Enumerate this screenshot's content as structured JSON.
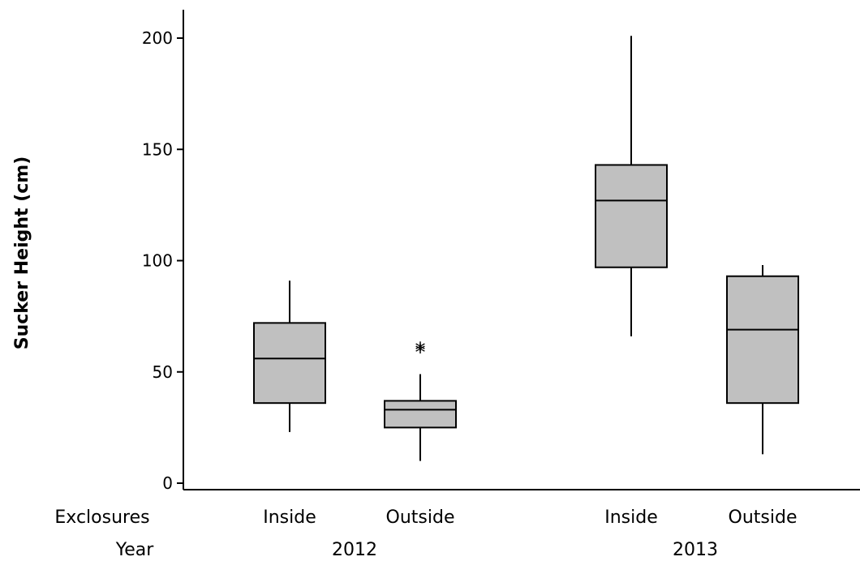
{
  "chart_data": {
    "type": "boxplot",
    "ylabel": "Sucker Height (cm)",
    "ylim": [
      0,
      210
    ],
    "yticks": [
      0,
      50,
      100,
      150,
      200
    ],
    "row_labels": {
      "exclosures": "Exclosures",
      "year": "Year"
    },
    "groups": [
      {
        "year": "2012",
        "exclosure": "Inside",
        "whisker_low": 23,
        "q1": 36,
        "median": 56,
        "q3": 72,
        "whisker_high": 91,
        "outliers": []
      },
      {
        "year": "2012",
        "exclosure": "Outside",
        "whisker_low": 10,
        "q1": 25,
        "median": 33,
        "q3": 37,
        "whisker_high": 49,
        "outliers": [
          61,
          60
        ]
      },
      {
        "year": "2013",
        "exclosure": "Inside",
        "whisker_low": 66,
        "q1": 97,
        "median": 127,
        "q3": 143,
        "whisker_high": 201,
        "outliers": []
      },
      {
        "year": "2013",
        "exclosure": "Outside",
        "whisker_low": 13,
        "q1": 36,
        "median": 69,
        "q3": 93,
        "whisker_high": 98,
        "outliers": []
      }
    ],
    "years": [
      "2012",
      "2013"
    ],
    "box_fill": "#c0c0c0",
    "line_color": "#000000"
  }
}
